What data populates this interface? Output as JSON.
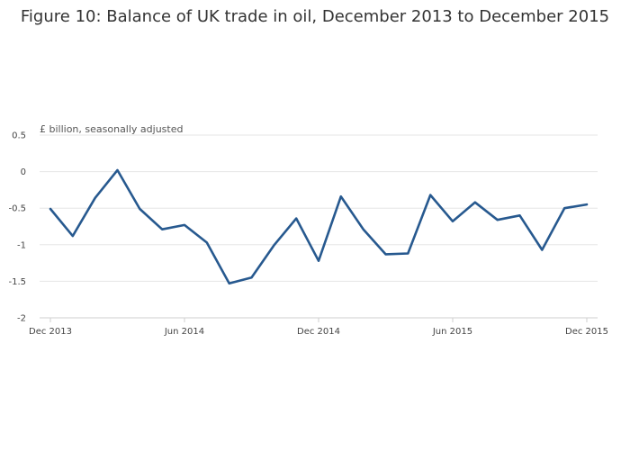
{
  "chart_data": {
    "type": "line",
    "title": "Figure 10: Balance of UK trade in oil, December 2013 to December 2015",
    "ylabel": "£ billion, seasonally adjusted",
    "xlabel": "",
    "ylim": [
      -2,
      0.5
    ],
    "yticks": [
      {
        "value": 0.5,
        "label": "0.5"
      },
      {
        "value": 0,
        "label": "0"
      },
      {
        "value": -0.5,
        "label": "-0.5"
      },
      {
        "value": -1,
        "label": "-1"
      },
      {
        "value": -1.5,
        "label": "-1.5"
      },
      {
        "value": -2,
        "label": "-2"
      }
    ],
    "xticks": [
      {
        "value": "Dec 2013",
        "label": "Dec 2013"
      },
      {
        "value": "Jun 2014",
        "label": "Jun 2014"
      },
      {
        "value": "Dec 2014",
        "label": "Dec 2014"
      },
      {
        "value": "Jun 2015",
        "label": "Jun 2015"
      },
      {
        "value": "Dec 2015",
        "label": "Dec 2015"
      }
    ],
    "grid": true,
    "line_color": "#27598f",
    "x": [
      "Dec 2013",
      "Jan 2014",
      "Feb 2014",
      "Mar 2014",
      "Apr 2014",
      "May 2014",
      "Jun 2014",
      "Jul 2014",
      "Aug 2014",
      "Sep 2014",
      "Oct 2014",
      "Nov 2014",
      "Dec 2014",
      "Jan 2015",
      "Feb 2015",
      "Mar 2015",
      "Apr 2015",
      "May 2015",
      "Jun 2015",
      "Jul 2015",
      "Aug 2015",
      "Sep 2015",
      "Oct 2015",
      "Nov 2015",
      "Dec 2015"
    ],
    "values": [
      -0.51,
      -0.88,
      -0.36,
      0.02,
      -0.51,
      -0.79,
      -0.73,
      -0.97,
      -1.53,
      -1.45,
      -1.01,
      -0.64,
      -1.22,
      -0.34,
      -0.79,
      -1.13,
      -1.12,
      -0.32,
      -0.68,
      -0.42,
      -0.66,
      -0.6,
      -1.07,
      -0.5,
      -0.45
    ]
  }
}
